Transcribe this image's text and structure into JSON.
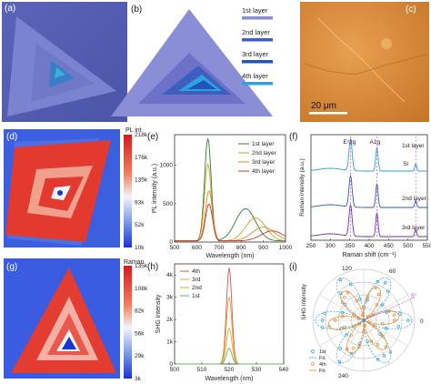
{
  "panels": {
    "a": {
      "label": "(a)"
    },
    "b": {
      "label": "(b)",
      "legend": [
        {
          "text": "1st layer",
          "color": "#8a8ed6"
        },
        {
          "text": "2nd layer",
          "color": "#3f5fbf"
        },
        {
          "text": "3rd layer",
          "color": "#1f55b8"
        },
        {
          "text": "4th layer",
          "color": "#2ea1e0"
        }
      ]
    },
    "c": {
      "label": "(c)",
      "scale_bar": "20 μm"
    },
    "d": {
      "label": "(d)",
      "colorbar_title": "PL int",
      "colorbar_ticks": [
        "218k",
        "176k",
        "135k",
        "93k",
        "52k",
        "10k"
      ]
    },
    "g": {
      "label": "(g)",
      "colorbar_title": "Raman",
      "colorbar_ticks": [
        "135k",
        "108k",
        "82k",
        "56k",
        "29k",
        "3k"
      ]
    }
  },
  "chart_data": [
    {
      "panel": "(e)",
      "type": "line",
      "xlabel": "Wavelength (nm)",
      "ylabel": "PL intensity (a.u.)",
      "xlim": [
        500,
        1000
      ],
      "ylim": [
        0,
        1400
      ],
      "xticks": [
        "500",
        "600",
        "700",
        "800",
        "900",
        "1000"
      ],
      "yticks": [
        "0",
        "500",
        "1000"
      ],
      "series": [
        {
          "name": "1st layer",
          "color": "#2e7d32",
          "peaks": [
            [
              650,
              1330,
              15
            ],
            [
              820,
              420,
              45
            ]
          ]
        },
        {
          "name": "2nd layer",
          "color": "#c9a227",
          "peaks": [
            [
              650,
              1000,
              15
            ],
            [
              865,
              300,
              45
            ]
          ]
        },
        {
          "name": "3rd layer",
          "color": "#e08a2e",
          "peaks": [
            [
              655,
              650,
              16
            ],
            [
              900,
              180,
              50
            ]
          ]
        },
        {
          "name": "4th layer",
          "color": "#c0392b",
          "peaks": [
            [
              655,
              480,
              16
            ],
            [
              940,
              130,
              50
            ]
          ]
        }
      ]
    },
    {
      "panel": "(f)",
      "type": "line",
      "xlabel": "Raman shift (cm⁻¹)",
      "ylabel": "Raman intensity (a.u.)",
      "xlim": [
        250,
        550
      ],
      "xticks": [
        "250",
        "300",
        "350",
        "400",
        "450",
        "500",
        "550"
      ],
      "peak_labels": [
        "E¹2g",
        "A1g",
        "Si"
      ],
      "series": [
        {
          "name": "1st layer",
          "color": "#2e9fd8"
        },
        {
          "name": "2nd layer",
          "color": "#2c5ab8"
        },
        {
          "name": "3rd layer",
          "color": "#6a2fb0"
        }
      ]
    },
    {
      "panel": "(h)",
      "type": "line",
      "xlabel": "Wavelength (nm)",
      "ylabel": "SHG intensity",
      "xlim": [
        500,
        540
      ],
      "ylim": [
        0,
        4.5
      ],
      "xticks": [
        "500",
        "510",
        "520",
        "530",
        "540"
      ],
      "yticks": [
        "0",
        "1k",
        "2k",
        "3k",
        "4k"
      ],
      "series": [
        {
          "name": "4th",
          "color": "#d9534f",
          "peak": [
            520,
            4.3,
            1.0
          ]
        },
        {
          "name": "3rd",
          "color": "#e9a03b",
          "peak": [
            520,
            3.0,
            1.0
          ]
        },
        {
          "name": "2nd",
          "color": "#c8b43a",
          "peak": [
            520,
            1.6,
            1.0
          ]
        },
        {
          "name": "1st",
          "color": "#5cb85c",
          "peak": [
            520,
            0.7,
            1.0
          ]
        }
      ]
    },
    {
      "panel": "(i)",
      "type": "scatter",
      "ylabel": "SHG intensity",
      "angle_labels": [
        "120",
        "60",
        "5°",
        "0",
        "240"
      ],
      "legend": [
        "1st",
        "Fit.",
        "4th",
        "Fit."
      ],
      "series": [
        {
          "name": "1st",
          "color": "#2e9fd8"
        },
        {
          "name": "4th",
          "color": "#e08a2e"
        }
      ]
    }
  ]
}
